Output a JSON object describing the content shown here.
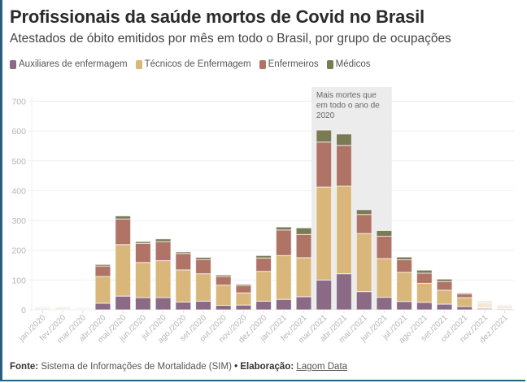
{
  "header": {
    "title": "Profissionais da saúde mortos de Covid no Brasil",
    "subtitle": "Atestados de óbito emitidos por mês em todo o Brasil, por grupo de ocupações"
  },
  "legend": [
    {
      "label": "Auxiliares de enfermagem",
      "color": "#8a6a84"
    },
    {
      "label": "Técnicos de Enfermagem",
      "color": "#d9b77b"
    },
    {
      "label": "Enfermeiros",
      "color": "#b07466"
    },
    {
      "label": "Médicos",
      "color": "#7a7a55"
    }
  ],
  "footer": {
    "source_label": "Fonte:",
    "source_text": "Sistema de Informações de Mortalidade (SIM)",
    "separator": "•",
    "credit_label": "Elaboração:",
    "credit_link": "Lagom Data"
  },
  "chart_data": {
    "type": "bar",
    "stacked": true,
    "title": "Profissionais da saúde mortos de Covid no Brasil",
    "subtitle": "Atestados de óbito emitidos por mês em todo o Brasil, por grupo de ocupações",
    "xlabel": "",
    "ylabel": "",
    "ylim": [
      0,
      700
    ],
    "yticks": [
      0,
      100,
      200,
      300,
      400,
      500,
      600,
      700
    ],
    "grid": true,
    "legend_position": "top-left",
    "categories": [
      "jan./2020",
      "fev./2020",
      "mar./2020",
      "abr./2020",
      "mai./2020",
      "jun./2020",
      "jul./2020",
      "ago./2020",
      "set./2020",
      "out./2020",
      "nov./2020",
      "dez./2020",
      "jan./2021",
      "fev./2021",
      "mar./2021",
      "abr./2021",
      "mai./2021",
      "jun./2021",
      "jul./2021",
      "ago./2021",
      "set./2021",
      "out./2021",
      "nov./2021",
      "dez./2021"
    ],
    "faded_categories": [
      "jan./2020",
      "fev./2020",
      "mar./2020",
      "nov./2021",
      "dez./2021"
    ],
    "series": [
      {
        "name": "Auxiliares de enfermagem",
        "color": "#8a6a84",
        "values": [
          3,
          2,
          2,
          22,
          46,
          41,
          41,
          26,
          29,
          15,
          16,
          29,
          35,
          44,
          100,
          121,
          61,
          42,
          28,
          25,
          19,
          11,
          7,
          4
        ]
      },
      {
        "name": "Técnicos de Enfermagem",
        "color": "#d9b77b",
        "values": [
          4,
          6,
          3,
          90,
          173,
          118,
          124,
          108,
          92,
          68,
          41,
          100,
          147,
          131,
          312,
          294,
          195,
          130,
          98,
          64,
          47,
          30,
          16,
          9
        ]
      },
      {
        "name": "Enfermeiros",
        "color": "#b07466",
        "values": [
          3,
          2,
          2,
          35,
          86,
          64,
          64,
          55,
          48,
          29,
          25,
          45,
          86,
          78,
          151,
          137,
          64,
          75,
          42,
          34,
          29,
          13,
          4,
          3
        ]
      },
      {
        "name": "Médicos",
        "color": "#7a7a55",
        "values": [
          1,
          1,
          1,
          5,
          10,
          6,
          9,
          5,
          7,
          5,
          4,
          8,
          10,
          22,
          40,
          38,
          16,
          19,
          9,
          10,
          8,
          3,
          3,
          1
        ]
      }
    ],
    "annotation": {
      "text_lines": [
        "Mais mortes que",
        "em todo o ano de",
        "2020"
      ],
      "from_category": "mar./2021",
      "to_category": "jun./2021"
    }
  }
}
